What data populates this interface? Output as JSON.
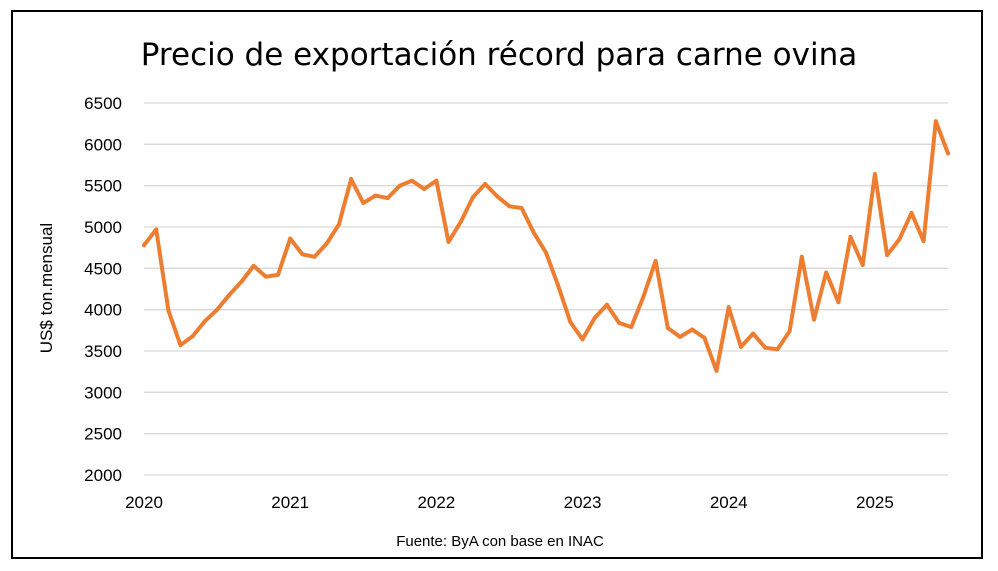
{
  "chart_data": {
    "type": "line",
    "title": "Precio de exportación récord para carne ovina",
    "ylabel": "US$ ton.mensual",
    "xlabel": "",
    "source_note": "Fuente: ByA con base en INAC",
    "ylim": [
      2000,
      6500
    ],
    "yticks": [
      6500,
      6000,
      5500,
      5000,
      4500,
      4000,
      3500,
      3000,
      2500,
      2000
    ],
    "xlim": [
      "2020-01",
      "2025-07"
    ],
    "xticks": [
      "2020",
      "2021",
      "2022",
      "2023",
      "2024",
      "2025"
    ],
    "grid": true,
    "color": "#ED7D31",
    "series": [
      {
        "x": [
          "2020-01",
          "2020-02",
          "2020-03",
          "2020-04",
          "2020-05",
          "2020-06",
          "2020-07",
          "2020-08",
          "2020-09",
          "2020-10",
          "2020-11",
          "2020-12",
          "2021-01",
          "2021-02",
          "2021-03",
          "2021-04",
          "2021-05",
          "2021-06",
          "2021-07",
          "2021-08",
          "2021-09",
          "2021-10",
          "2021-11",
          "2021-12",
          "2022-01",
          "2022-02",
          "2022-03",
          "2022-04",
          "2022-05",
          "2022-06",
          "2022-07",
          "2022-08",
          "2022-09",
          "2022-10",
          "2022-11",
          "2022-12",
          "2023-01",
          "2023-02",
          "2023-03",
          "2023-04",
          "2023-05",
          "2023-06",
          "2023-07",
          "2023-08",
          "2023-09",
          "2023-10",
          "2023-11",
          "2023-12",
          "2024-01",
          "2024-02",
          "2024-03",
          "2024-04",
          "2024-05",
          "2024-06",
          "2024-07",
          "2024-08",
          "2024-09",
          "2024-10",
          "2024-11",
          "2024-12",
          "2025-01",
          "2025-02",
          "2025-03",
          "2025-04",
          "2025-05",
          "2025-06",
          "2025-07"
        ],
        "values": [
          4780,
          4970,
          3990,
          3570,
          3680,
          3860,
          4000,
          4180,
          4340,
          4530,
          4400,
          4420,
          4860,
          4670,
          4640,
          4800,
          5030,
          5580,
          5290,
          5380,
          5350,
          5500,
          5560,
          5460,
          5560,
          4820,
          5060,
          5360,
          5520,
          5370,
          5250,
          5230,
          4930,
          4690,
          4290,
          3850,
          3640,
          3900,
          4060,
          3840,
          3790,
          4160,
          4590,
          3780,
          3670,
          3760,
          3660,
          3260,
          4030,
          3550,
          3710,
          3540,
          3520,
          3740,
          4640,
          3880,
          4450,
          4090,
          4880,
          4540,
          5640,
          4660,
          4850,
          5170,
          4830,
          6280,
          5890
        ]
      }
    ]
  }
}
